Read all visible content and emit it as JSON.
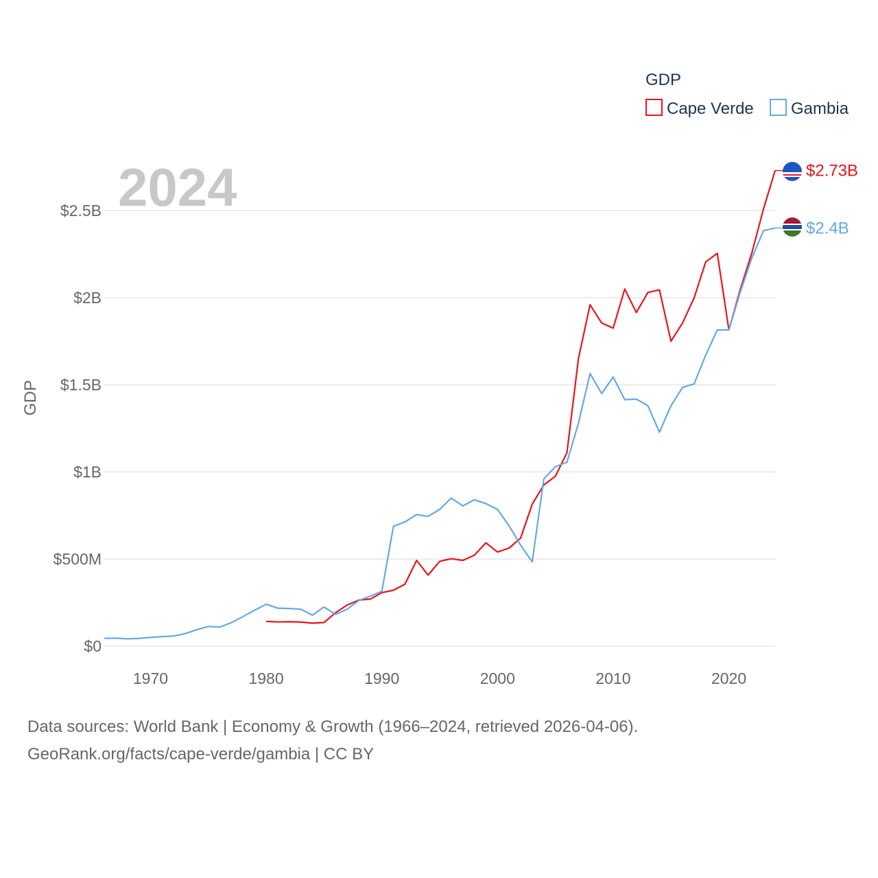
{
  "chart_data": {
    "type": "line",
    "title": "",
    "year_label": "2024",
    "xlabel": "",
    "ylabel": "GDP",
    "xlim": [
      1966,
      2024
    ],
    "ylim": [
      0,
      2900000000
    ],
    "x_ticks": [
      1970,
      1980,
      1990,
      2000,
      2010,
      2020
    ],
    "x_tick_labels": [
      "1970",
      "1980",
      "1990",
      "2000",
      "2010",
      "2020"
    ],
    "y_ticks": [
      0,
      500000000,
      1000000000,
      1500000000,
      2000000000,
      2500000000
    ],
    "y_tick_labels": [
      "$0",
      "$500M",
      "$1B",
      "$1.5B",
      "$2B",
      "$2.5B"
    ],
    "legend_title": "GDP",
    "legend_position": "top-right",
    "grid": true,
    "series": [
      {
        "name": "Cape Verde",
        "color": "#e8141c",
        "end_label": "$2.73B",
        "flag": "cape-verde-flag",
        "x": [
          1980,
          1981,
          1982,
          1983,
          1984,
          1985,
          1986,
          1987,
          1988,
          1989,
          1990,
          1991,
          1992,
          1993,
          1994,
          1995,
          1996,
          1997,
          1998,
          1999,
          2000,
          2001,
          2002,
          2003,
          2004,
          2005,
          2006,
          2007,
          2008,
          2009,
          2010,
          2011,
          2012,
          2013,
          2014,
          2015,
          2016,
          2017,
          2018,
          2019,
          2020,
          2021,
          2022,
          2023,
          2024
        ],
        "values": [
          142000000,
          139000000,
          140000000,
          138000000,
          132000000,
          136000000,
          192000000,
          236000000,
          264000000,
          270000000,
          307000000,
          321000000,
          356000000,
          492000000,
          408000000,
          487000000,
          502000000,
          492000000,
          522000000,
          593000000,
          540000000,
          563000000,
          620000000,
          815000000,
          925000000,
          975000000,
          1110000000,
          1650000000,
          1960000000,
          1855000000,
          1825000000,
          2050000000,
          1915000000,
          2030000000,
          2045000000,
          1750000000,
          1855000000,
          2000000000,
          2205000000,
          2255000000,
          1815000000,
          2050000000,
          2260000000,
          2510000000,
          2730000000
        ]
      },
      {
        "name": "Gambia",
        "color": "#64a8e6",
        "end_label": "$2.4B",
        "flag": "gambia-flag",
        "x": [
          1966,
          1967,
          1968,
          1969,
          1970,
          1971,
          1972,
          1973,
          1974,
          1975,
          1976,
          1977,
          1978,
          1979,
          1980,
          1981,
          1982,
          1983,
          1984,
          1985,
          1986,
          1987,
          1988,
          1989,
          1990,
          1991,
          1992,
          1993,
          1994,
          1995,
          1996,
          1997,
          1998,
          1999,
          2000,
          2001,
          2002,
          2003,
          2004,
          2005,
          2006,
          2007,
          2008,
          2009,
          2010,
          2011,
          2012,
          2013,
          2014,
          2015,
          2016,
          2017,
          2018,
          2019,
          2020,
          2021,
          2022,
          2023,
          2024
        ],
        "values": [
          45000000,
          46000000,
          42000000,
          45000000,
          50000000,
          55000000,
          58000000,
          72000000,
          95000000,
          113000000,
          110000000,
          135000000,
          170000000,
          206000000,
          241000000,
          218000000,
          216000000,
          212000000,
          178000000,
          225000000,
          182000000,
          212000000,
          262000000,
          287000000,
          315000000,
          688000000,
          713000000,
          755000000,
          745000000,
          785000000,
          850000000,
          805000000,
          840000000,
          818000000,
          785000000,
          690000000,
          580000000,
          484000000,
          960000000,
          1030000000,
          1055000000,
          1280000000,
          1565000000,
          1450000000,
          1545000000,
          1415000000,
          1418000000,
          1380000000,
          1228000000,
          1380000000,
          1485000000,
          1505000000,
          1670000000,
          1815000000,
          1815000000,
          2035000000,
          2230000000,
          2385000000,
          2400000000
        ]
      }
    ]
  },
  "footer": {
    "line1": "Data sources: World Bank | Economy & Growth (1966–2024, retrieved 2026-04-06).",
    "line2": "GeoRank.org/facts/cape-verde/gambia | CC BY"
  },
  "colors": {
    "cape_verde": "#e8141c",
    "gambia": "#64a8e6",
    "grid": "#e6e6e6"
  }
}
